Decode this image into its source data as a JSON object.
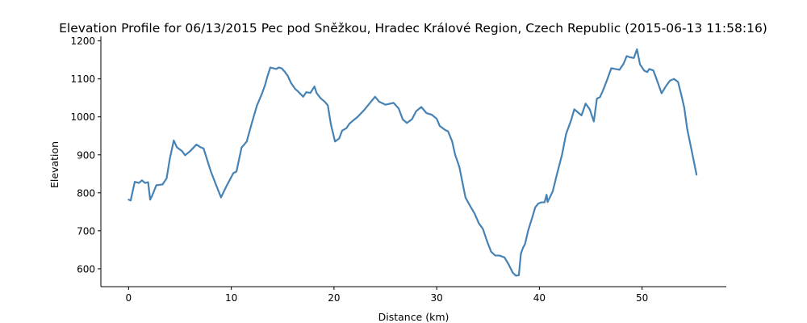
{
  "chart_data": {
    "type": "line",
    "title": "Elevation Profile for 06/13/2015 Pec pod Sněžkou, Hradec Králové Region, Czech Republic (2015-06-13 11:58:16)",
    "xlabel": "Distance (km)",
    "ylabel": "Elevation",
    "xlim": [
      -2.7,
      58.2
    ],
    "ylim": [
      553,
      1212
    ],
    "xticks": [
      0,
      10,
      20,
      30,
      40,
      50
    ],
    "yticks": [
      600,
      700,
      800,
      900,
      1000,
      1100,
      1200
    ],
    "grid": false,
    "legend": "none",
    "line_color": "#4682b4",
    "spines": [
      "left",
      "bottom"
    ],
    "series": [
      {
        "x": [
          0,
          0.2,
          0.6,
          1.0,
          1.3,
          1.6,
          1.9,
          2.1,
          2.3,
          2.7,
          3.3,
          3.7,
          4.0,
          4.4,
          4.7,
          5.2,
          5.5,
          6.0,
          6.6,
          7.0,
          7.3,
          7.6,
          8.0,
          8.5,
          9.0,
          9.5,
          10.2,
          10.5,
          11.0,
          11.5,
          12.0,
          12.5,
          13.0,
          13.3,
          13.5,
          13.8,
          14.1,
          14.4,
          14.6,
          14.9,
          15.2,
          15.5,
          15.8,
          16.2,
          16.5,
          17.0,
          17.3,
          17.7,
          18.1,
          18.3,
          18.7,
          19.1,
          19.4,
          19.7,
          20.1,
          20.5,
          20.8,
          21.2,
          21.5,
          21.8,
          22.3,
          23.0,
          23.6,
          24.0,
          24.4,
          25.0,
          25.5,
          25.8,
          26.3,
          26.7,
          27.1,
          27.6,
          28.0,
          28.5,
          29.0,
          29.5,
          30.0,
          30.3,
          30.8,
          31.1,
          31.5,
          31.8,
          32.2,
          32.8,
          33.2,
          33.7,
          34.1,
          34.5,
          34.9,
          35.3,
          35.7,
          36.1,
          36.6,
          37.0,
          37.4,
          37.7,
          38.0,
          38.2,
          38.4,
          38.6,
          38.9,
          39.3,
          39.6,
          39.9,
          40.2,
          40.5,
          40.7,
          40.8,
          41.0,
          41.3,
          41.7,
          42.2,
          42.6,
          43.1,
          43.4,
          43.7,
          44.1,
          44.5,
          44.9,
          45.3,
          45.6,
          45.9,
          46.2,
          46.6,
          47.0,
          47.4,
          47.8,
          48.2,
          48.5,
          48.8,
          49.2,
          49.5,
          49.8,
          50.2,
          50.5,
          50.7,
          51.1,
          51.4,
          51.9,
          52.3,
          52.7,
          53.1,
          53.5,
          53.8,
          54.1,
          54.4,
          54.8,
          55.3
        ],
        "y": [
          782,
          780,
          829,
          826,
          833,
          826,
          828,
          782,
          793,
          820,
          822,
          838,
          888,
          938,
          920,
          910,
          899,
          910,
          927,
          920,
          917,
          891,
          857,
          822,
          788,
          816,
          852,
          856,
          919,
          935,
          984,
          1030,
          1062,
          1085,
          1105,
          1130,
          1128,
          1126,
          1130,
          1128,
          1119,
          1108,
          1090,
          1074,
          1067,
          1053,
          1065,
          1063,
          1080,
          1063,
          1049,
          1040,
          1030,
          980,
          935,
          943,
          964,
          970,
          982,
          989,
          1000,
          1020,
          1040,
          1053,
          1040,
          1032,
          1035,
          1037,
          1022,
          993,
          984,
          994,
          1015,
          1026,
          1010,
          1006,
          995,
          976,
          966,
          962,
          936,
          900,
          869,
          788,
          768,
          745,
          720,
          705,
          673,
          645,
          635,
          635,
          630,
          612,
          590,
          582,
          583,
          640,
          655,
          665,
          700,
          735,
          762,
          772,
          775,
          775,
          795,
          776,
          787,
          804,
          848,
          900,
          955,
          992,
          1020,
          1013,
          1004,
          1035,
          1020,
          988,
          1048,
          1052,
          1070,
          1098,
          1128,
          1126,
          1124,
          1140,
          1160,
          1157,
          1155,
          1178,
          1138,
          1122,
          1118,
          1126,
          1122,
          1100,
          1062,
          1080,
          1095,
          1100,
          1092,
          1060,
          1025,
          967,
          915,
          848
        ]
      }
    ]
  }
}
